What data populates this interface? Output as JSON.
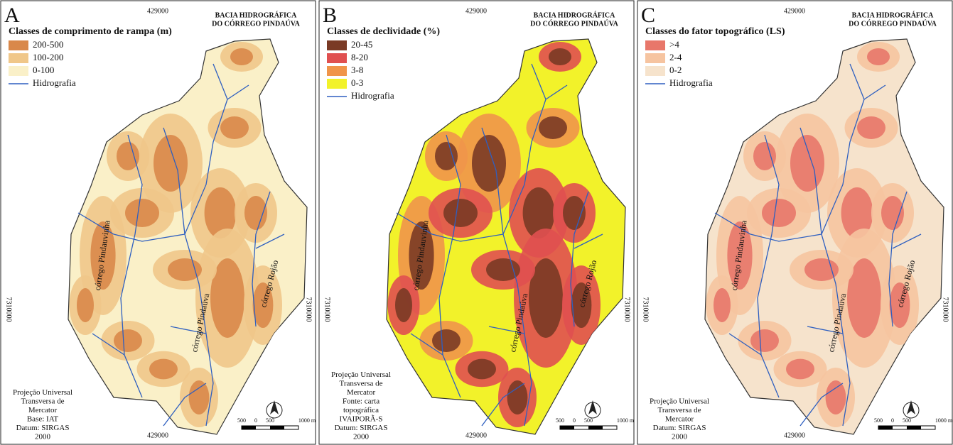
{
  "panels": [
    {
      "letter": "A",
      "top_coord": "429000",
      "bottom_coord": "429000",
      "left_coord": "7310000",
      "right_coord": "7310000",
      "basin_title": [
        "BACIA HIDROGRÁFICA",
        "DO CÓRREGO PINDAÚVA"
      ],
      "legend": {
        "title": "Classes de comprimento de rampa (m)",
        "items": [
          {
            "label": "200-500",
            "color": "#d9884a"
          },
          {
            "label": "100-200",
            "color": "#f0c789"
          },
          {
            "label": "0-100",
            "color": "#faf0c8"
          }
        ],
        "hydro": "Hidrografia",
        "hydro_color": "#2e5fc0"
      },
      "streams": [
        "córrego Pindauvinha",
        "córrego Pindaúva",
        "córrego Rojão"
      ],
      "credits": [
        "Projeção Universal",
        "Transversa de",
        "Mercator",
        "Base: IAT",
        "Datum: SIRGAS",
        "2000"
      ],
      "scale": [
        "500",
        "0",
        "500",
        "1000 m"
      ]
    },
    {
      "letter": "B",
      "top_coord": "429000",
      "bottom_coord": "429000",
      "left_coord": "7310000",
      "right_coord": "7310000",
      "basin_title": [
        "BACIA HIDROGRÁFICA",
        "DO CÓRREGO PINDAÚVA"
      ],
      "legend": {
        "title": "Classes de declividade (%)",
        "items": [
          {
            "label": "20-45",
            "color": "#7a3a25"
          },
          {
            "label": "8-20",
            "color": "#e05050"
          },
          {
            "label": "3-8",
            "color": "#f0954a"
          },
          {
            "label": "0-3",
            "color": "#f2f22a"
          }
        ],
        "hydro": "Hidrografia",
        "hydro_color": "#2e5fc0"
      },
      "streams": [
        "córrego Pindauvinha",
        "córrego Pindaúva",
        "córrego Rojão"
      ],
      "credits": [
        "Projeção Universal",
        "Transversa de",
        "Mercator",
        "Fonte: carta",
        "topográfica",
        "IVAIPORÃ-S",
        "Datum: SIRGAS",
        "2000"
      ],
      "scale": [
        "500",
        "0",
        "500",
        "1000 m"
      ]
    },
    {
      "letter": "C",
      "top_coord": "429000",
      "bottom_coord": "429000",
      "left_coord": "7310000",
      "right_coord": "7310000",
      "basin_title": [
        "BACIA HIDROGRÁFICA",
        "DO CÓRREGO PINDAÚVA"
      ],
      "legend": {
        "title": "Classes do fator topográfico (LS)",
        "items": [
          {
            "label": ">4",
            "color": "#e8776a"
          },
          {
            "label": "2-4",
            "color": "#f6c4a0"
          },
          {
            "label": "0-2",
            "color": "#f6e3cc"
          }
        ],
        "hydro": "Hidrografia",
        "hydro_color": "#2e5fc0"
      },
      "streams": [
        "córrego Pindauvinha",
        "córrego Pindaúva",
        "córrego Rojão"
      ],
      "credits": [
        "Projeção Universal",
        "Transversa de",
        "Mercator",
        "Datum: SIRGAS",
        "2000"
      ],
      "scale": [
        "500",
        "0",
        "500",
        "1000 m"
      ]
    }
  ]
}
